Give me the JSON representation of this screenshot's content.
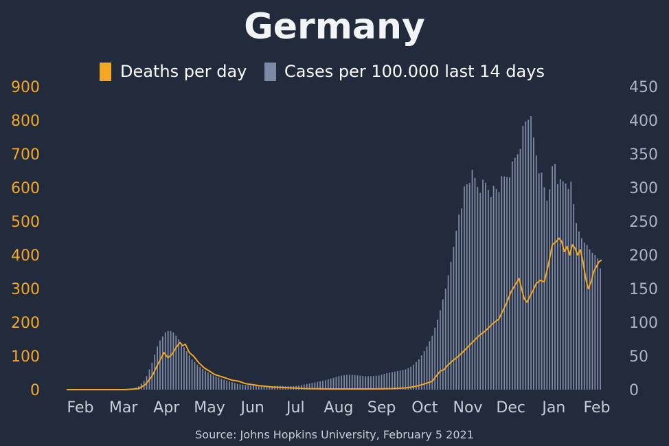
{
  "chart_data": {
    "type": "bar",
    "title": "Germany",
    "source": "Source: Johns Hopkins University, February 5 2021",
    "x_ticks": [
      "Feb",
      "Mar",
      "Apr",
      "May",
      "Jun",
      "Jul",
      "Aug",
      "Sep",
      "Oct",
      "Nov",
      "Dec",
      "Jan",
      "Feb"
    ],
    "y_left_ticks": [
      "0",
      "100",
      "200",
      "300",
      "400",
      "500",
      "600",
      "700",
      "800",
      "900"
    ],
    "y_right_ticks": [
      "0",
      "50",
      "100",
      "150",
      "200",
      "250",
      "300",
      "350",
      "400",
      "450"
    ],
    "y_left_range": [
      0,
      900
    ],
    "y_right_range": [
      0,
      450
    ],
    "colors": {
      "background": "#222b3c",
      "deaths": "#f5a623",
      "cases": "#7d8aa6",
      "left_ticks": "#f5a623",
      "right_ticks": "#aab4c8",
      "x_ticks": "#c8cdd6",
      "title": "#ffffff"
    },
    "series": [
      {
        "name": "Deaths per day",
        "type": "line",
        "axis": "left",
        "keypoints": [
          [
            1,
            0
          ],
          [
            45,
            0
          ],
          [
            55,
            3
          ],
          [
            60,
            15
          ],
          [
            65,
            40
          ],
          [
            70,
            80
          ],
          [
            74,
            110
          ],
          [
            77,
            95
          ],
          [
            80,
            105
          ],
          [
            83,
            125
          ],
          [
            86,
            140
          ],
          [
            88,
            130
          ],
          [
            90,
            135
          ],
          [
            93,
            110
          ],
          [
            96,
            100
          ],
          [
            100,
            80
          ],
          [
            104,
            65
          ],
          [
            108,
            55
          ],
          [
            112,
            45
          ],
          [
            116,
            40
          ],
          [
            120,
            35
          ],
          [
            125,
            28
          ],
          [
            130,
            25
          ],
          [
            135,
            18
          ],
          [
            140,
            15
          ],
          [
            145,
            12
          ],
          [
            150,
            10
          ],
          [
            155,
            8
          ],
          [
            160,
            7
          ],
          [
            170,
            5
          ],
          [
            180,
            3
          ],
          [
            200,
            2
          ],
          [
            215,
            2
          ],
          [
            230,
            2
          ],
          [
            245,
            3
          ],
          [
            255,
            5
          ],
          [
            260,
            8
          ],
          [
            265,
            12
          ],
          [
            270,
            18
          ],
          [
            275,
            25
          ],
          [
            278,
            40
          ],
          [
            281,
            55
          ],
          [
            284,
            60
          ],
          [
            286,
            70
          ],
          [
            290,
            85
          ],
          [
            295,
            100
          ],
          [
            300,
            120
          ],
          [
            305,
            140
          ],
          [
            310,
            160
          ],
          [
            315,
            175
          ],
          [
            320,
            195
          ],
          [
            325,
            210
          ],
          [
            328,
            235
          ],
          [
            331,
            260
          ],
          [
            334,
            290
          ],
          [
            337,
            310
          ],
          [
            340,
            330
          ],
          [
            342,
            300
          ],
          [
            344,
            270
          ],
          [
            346,
            260
          ],
          [
            350,
            290
          ],
          [
            353,
            315
          ],
          [
            356,
            325
          ],
          [
            359,
            320
          ],
          [
            362,
            370
          ],
          [
            365,
            430
          ],
          [
            368,
            440
          ],
          [
            370,
            450
          ],
          [
            372,
            440
          ],
          [
            374,
            410
          ],
          [
            376,
            425
          ],
          [
            378,
            400
          ],
          [
            380,
            430
          ],
          [
            382,
            420
          ],
          [
            384,
            400
          ],
          [
            386,
            415
          ],
          [
            388,
            380
          ],
          [
            390,
            330
          ],
          [
            392,
            300
          ],
          [
            394,
            320
          ],
          [
            396,
            350
          ],
          [
            398,
            365
          ],
          [
            400,
            380
          ],
          [
            402,
            385
          ]
        ]
      },
      {
        "name": "Cases per 100.000 last 14 days",
        "type": "bar",
        "axis": "right",
        "keypoints": [
          [
            1,
            0
          ],
          [
            45,
            0
          ],
          [
            50,
            1
          ],
          [
            55,
            5
          ],
          [
            60,
            15
          ],
          [
            65,
            40
          ],
          [
            70,
            70
          ],
          [
            75,
            85
          ],
          [
            78,
            88
          ],
          [
            81,
            85
          ],
          [
            85,
            75
          ],
          [
            90,
            60
          ],
          [
            95,
            45
          ],
          [
            100,
            35
          ],
          [
            105,
            28
          ],
          [
            110,
            22
          ],
          [
            115,
            18
          ],
          [
            120,
            14
          ],
          [
            125,
            11
          ],
          [
            130,
            8
          ],
          [
            135,
            7
          ],
          [
            140,
            6
          ],
          [
            145,
            6
          ],
          [
            150,
            5
          ],
          [
            155,
            5
          ],
          [
            160,
            6
          ],
          [
            165,
            5
          ],
          [
            170,
            5
          ],
          [
            175,
            6
          ],
          [
            180,
            8
          ],
          [
            185,
            10
          ],
          [
            190,
            12
          ],
          [
            195,
            14
          ],
          [
            200,
            17
          ],
          [
            205,
            20
          ],
          [
            210,
            22
          ],
          [
            215,
            22
          ],
          [
            220,
            21
          ],
          [
            225,
            20
          ],
          [
            230,
            20
          ],
          [
            235,
            21
          ],
          [
            240,
            24
          ],
          [
            245,
            26
          ],
          [
            250,
            28
          ],
          [
            255,
            30
          ],
          [
            260,
            35
          ],
          [
            265,
            45
          ],
          [
            270,
            60
          ],
          [
            275,
            80
          ],
          [
            280,
            110
          ],
          [
            285,
            150
          ],
          [
            290,
            200
          ],
          [
            295,
            260
          ],
          [
            298,
            290
          ],
          [
            301,
            305
          ],
          [
            304,
            318
          ],
          [
            307,
            310
          ],
          [
            310,
            300
          ],
          [
            315,
            305
          ],
          [
            320,
            295
          ],
          [
            325,
            300
          ],
          [
            330,
            315
          ],
          [
            335,
            330
          ],
          [
            340,
            360
          ],
          [
            343,
            385
          ],
          [
            346,
            405
          ],
          [
            348,
            410
          ],
          [
            350,
            380
          ],
          [
            352,
            360
          ],
          [
            355,
            330
          ],
          [
            358,
            305
          ],
          [
            361,
            285
          ],
          [
            364,
            320
          ],
          [
            367,
            335
          ],
          [
            370,
            300
          ],
          [
            373,
            305
          ],
          [
            376,
            310
          ],
          [
            379,
            300
          ],
          [
            382,
            260
          ],
          [
            385,
            235
          ],
          [
            388,
            220
          ],
          [
            391,
            215
          ],
          [
            394,
            205
          ],
          [
            397,
            200
          ],
          [
            399,
            195
          ],
          [
            401,
            180
          ]
        ]
      }
    ]
  }
}
